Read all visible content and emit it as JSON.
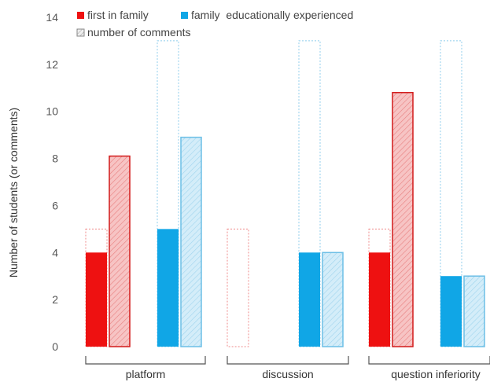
{
  "chart_data": {
    "type": "bar",
    "categories": [
      "platform",
      "discussion",
      "question inferiority"
    ],
    "ylabel": "Number of students (or comments)",
    "xlabel": "",
    "ylim": [
      0,
      14
    ],
    "yticks": [
      0,
      2,
      4,
      6,
      8,
      10,
      12,
      14
    ],
    "grid": false,
    "legend_position": "top-left",
    "legend": [
      {
        "label": "first in family",
        "swatch": "solid-red"
      },
      {
        "label": "family  educationally experienced",
        "swatch": "solid-blue"
      },
      {
        "label": "number of comments",
        "swatch": "hatched"
      }
    ],
    "groups": [
      {
        "name": "first in family",
        "color": "#ee1111",
        "light": "#f5b0b0",
        "students": [
          4,
          0,
          4
        ],
        "total_students": [
          5,
          5,
          5
        ],
        "comments": [
          8.1,
          0,
          10.8
        ]
      },
      {
        "name": "family  educationally experienced",
        "color": "#10a6e6",
        "light": "#c8e8f7",
        "students": [
          5,
          4,
          3
        ],
        "total_students": [
          13,
          13,
          13
        ],
        "comments": [
          8.9,
          4,
          3
        ]
      }
    ]
  }
}
